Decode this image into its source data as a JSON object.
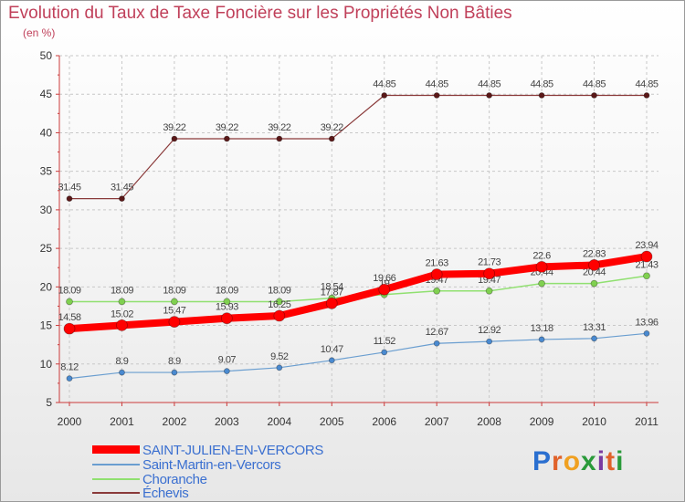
{
  "title": "Evolution du Taux de Taxe Foncière sur les Propriétés Non Bâties",
  "subtitle": "(en %)",
  "logo": {
    "letters": [
      "P",
      "r",
      "o",
      "x",
      "i",
      "t",
      "i"
    ],
    "colors": [
      "#2a6fd0",
      "#e0622a",
      "#f0a020",
      "#2a9a3a",
      "#7a3aa0",
      "#e0622a",
      "#2a9a3a"
    ]
  },
  "chart_data": {
    "type": "line",
    "title": "Evolution du Taux de Taxe Foncière sur les Propriétés Non Bâties",
    "ylabel": "(en %)",
    "xlabel": "",
    "x": [
      "2000",
      "2001",
      "2002",
      "2003",
      "2004",
      "2005",
      "2006",
      "2007",
      "2008",
      "2009",
      "2010",
      "2011"
    ],
    "ylim": [
      5,
      50
    ],
    "yticks": [
      5,
      10,
      15,
      20,
      25,
      30,
      35,
      40,
      45,
      50
    ],
    "grid": "dashed",
    "legend": "bottom-left",
    "series": [
      {
        "name": "Échevis",
        "color": "#8a3a3a",
        "point": "#5a1818",
        "width": 1.2,
        "r": 3,
        "values": [
          31.45,
          31.45,
          39.22,
          39.22,
          39.22,
          39.22,
          44.85,
          44.85,
          44.85,
          44.85,
          44.85,
          44.85
        ],
        "labels": [
          "31.45",
          "31.45",
          "39.22",
          "39.22",
          "39.22",
          "39.22",
          "44.85",
          "44.85",
          "44.85",
          "44.85",
          "44.85",
          "44.85"
        ]
      },
      {
        "name": "Choranche",
        "color": "#90e070",
        "point": "#80d050",
        "width": 1.5,
        "r": 3.5,
        "values": [
          18.09,
          18.09,
          18.09,
          18.09,
          18.09,
          18.54,
          19,
          19.47,
          19.47,
          20.44,
          20.44,
          21.43
        ],
        "labels": [
          "18.09",
          "18.09",
          "18.09",
          "18.09",
          "18.09",
          "18.54",
          "19",
          "19.47",
          "19.47",
          "20.44",
          "20.44",
          "21.43"
        ]
      },
      {
        "name": "Saint-Martin-en-Vercors",
        "color": "#6a9ed0",
        "point": "#4a8ad0",
        "width": 1.2,
        "r": 3,
        "values": [
          8.12,
          8.9,
          8.9,
          9.07,
          9.52,
          10.47,
          11.52,
          12.67,
          12.92,
          13.18,
          13.31,
          13.96
        ],
        "labels": [
          "8.12",
          "8.9",
          "8.9",
          "9.07",
          "9.52",
          "10.47",
          "11.52",
          "12.67",
          "12.92",
          "13.18",
          "13.31",
          "13.96"
        ]
      },
      {
        "name": "SAINT-JULIEN-EN-VERCORS",
        "color": "#ff0000",
        "point": "#ff0000",
        "width": 8,
        "r": 6,
        "values": [
          14.58,
          15.02,
          15.47,
          15.93,
          16.25,
          17.87,
          19.66,
          21.63,
          21.73,
          22.6,
          22.83,
          23.94
        ],
        "labels": [
          "14.58",
          "15.02",
          "15.47",
          "15.93",
          "16.25",
          "17.87",
          "19.66",
          "21.63",
          "21.73",
          "22.6",
          "22.83",
          "23.94"
        ]
      }
    ]
  },
  "legend": [
    {
      "name": "SAINT-JULIEN-EN-VERCORS",
      "color": "#ff0000"
    },
    {
      "name": "Saint-Martin-en-Vercors",
      "color": "#6a9ed0"
    },
    {
      "name": "Choranche",
      "color": "#90e070"
    },
    {
      "name": "Échevis",
      "color": "#8a3a3a"
    }
  ]
}
